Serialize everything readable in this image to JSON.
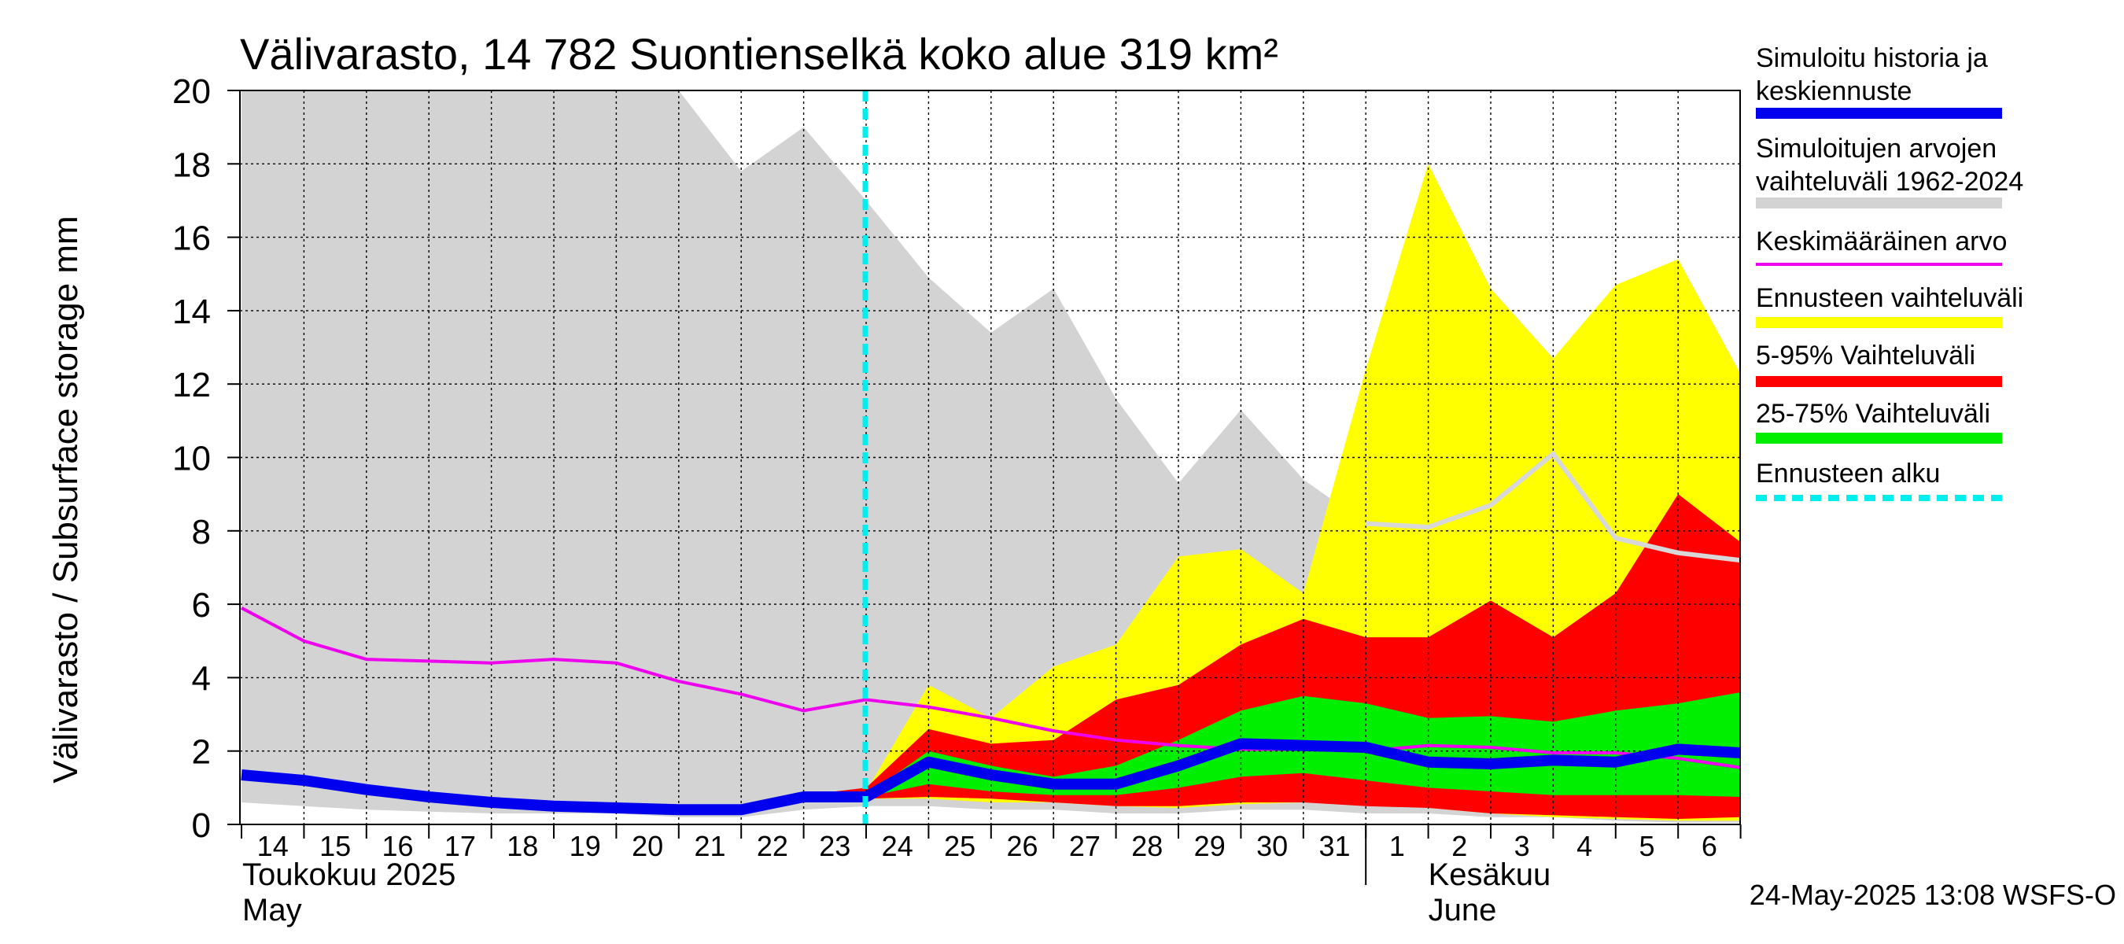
{
  "chart_data": {
    "type": "area",
    "title": "Välivarasto, 14 782 Suontienselkä koko alue 319 km²",
    "ylabel": "Välivarasto / Subsurface storage  mm",
    "ylim": [
      0,
      20
    ],
    "yticks": [
      0,
      2,
      4,
      6,
      8,
      10,
      12,
      14,
      16,
      18,
      20
    ],
    "grid": true,
    "x_day_labels": [
      "14",
      "15",
      "16",
      "17",
      "18",
      "19",
      "20",
      "21",
      "22",
      "23",
      "24",
      "25",
      "26",
      "27",
      "28",
      "29",
      "30",
      "31",
      "1",
      "2",
      "3",
      "4",
      "5",
      "6"
    ],
    "month_labels": [
      {
        "fi": "Toukokuu  2025",
        "en": "May"
      },
      {
        "fi": "Kesäkuu",
        "en": "June"
      }
    ],
    "forecast_start_day_index": 10,
    "legend": [
      {
        "label": "Simuloitu historia ja keskiennuste",
        "color": "#0000ee",
        "style": "thick-line"
      },
      {
        "label": "Simuloitujen arvojen vaihteluväli 1962-2024",
        "color": "#d3d3d3",
        "style": "thick-line"
      },
      {
        "label": "Keskimääräinen arvo",
        "color": "#ee00ee",
        "style": "line"
      },
      {
        "label": "Ennusteen vaihteluväli",
        "color": "#ffff00",
        "style": "thick-line"
      },
      {
        "label": "5-95% Vaihteluväli",
        "color": "#ff0000",
        "style": "thick-line"
      },
      {
        "label": "25-75% Vaihteluväli",
        "color": "#00ee00",
        "style": "thick-line"
      },
      {
        "label": "Ennusteen alku",
        "color": "#00eeee",
        "style": "dashed"
      }
    ],
    "series": {
      "history_range": {
        "name": "Simuloitujen arvojen vaihteluväli 1962-2024",
        "x": [
          0,
          1,
          2,
          3,
          4,
          5,
          6,
          7,
          8,
          9,
          10,
          11,
          12,
          13,
          14,
          15,
          16,
          17,
          18,
          19,
          20,
          21,
          22,
          23,
          24.15
        ],
        "upper": [
          20,
          20,
          20,
          20,
          20,
          20,
          20,
          20,
          17.8,
          19,
          17,
          14.9,
          13.4,
          14.6,
          11.6,
          9.3,
          11.3,
          9.4,
          8.2,
          8.1,
          8.7,
          10.1,
          7.8,
          7.4,
          7.2
        ],
        "lower": [
          0.6,
          0.5,
          0.4,
          0.35,
          0.3,
          0.3,
          0.3,
          0.2,
          0.2,
          0.4,
          0.5,
          0.5,
          0.4,
          0.4,
          0.3,
          0.3,
          0.4,
          0.4,
          0.3,
          0.3,
          0.2,
          0.2,
          0.1,
          0.05,
          0.05
        ]
      },
      "history_median_line": {
        "name": "history range median (light line)",
        "x": [
          18,
          19,
          20,
          21,
          22,
          23,
          24.15
        ],
        "values": [
          8.2,
          8.1,
          8.7,
          10.1,
          7.8,
          7.4,
          7.2
        ]
      },
      "forecast_range": {
        "name": "Ennusteen vaihteluväli",
        "x": [
          9,
          10,
          11,
          12,
          13,
          14,
          15,
          16,
          17,
          18,
          19,
          20,
          21,
          22,
          23,
          24.15
        ],
        "upper": [
          0.8,
          0.9,
          3.8,
          2.9,
          4.3,
          4.9,
          7.3,
          7.5,
          6.3,
          12.4,
          18,
          14.6,
          12.7,
          14.7,
          15.4,
          12.3
        ],
        "lower": [
          0.7,
          0.7,
          0.7,
          0.6,
          0.6,
          0.5,
          0.45,
          0.55,
          0.6,
          0.55,
          0.45,
          0.3,
          0.2,
          0.15,
          0.1,
          0.1
        ]
      },
      "p5_95": {
        "name": "5-95% Vaihteluväli",
        "x": [
          9,
          10,
          11,
          12,
          13,
          14,
          15,
          16,
          17,
          18,
          19,
          20,
          21,
          22,
          23,
          24.15
        ],
        "upper": [
          0.8,
          1.0,
          2.6,
          2.2,
          2.3,
          3.4,
          3.8,
          4.9,
          5.6,
          5.1,
          5.1,
          6.1,
          5.1,
          6.3,
          9.0,
          7.7
        ],
        "lower": [
          0.7,
          0.7,
          0.75,
          0.7,
          0.6,
          0.5,
          0.5,
          0.6,
          0.6,
          0.5,
          0.45,
          0.3,
          0.25,
          0.2,
          0.15,
          0.2
        ]
      },
      "p25_75": {
        "name": "25-75% Vaihteluväli",
        "x": [
          9,
          10,
          11,
          12,
          13,
          14,
          15,
          16,
          17,
          18,
          19,
          20,
          21,
          22,
          23,
          24.15
        ],
        "upper": [
          0.8,
          0.8,
          2.0,
          1.6,
          1.3,
          1.6,
          2.3,
          3.1,
          3.5,
          3.3,
          2.9,
          2.95,
          2.8,
          3.1,
          3.3,
          3.6
        ],
        "lower": [
          0.75,
          0.75,
          1.1,
          0.9,
          0.8,
          0.8,
          1.0,
          1.3,
          1.4,
          1.2,
          1.0,
          0.9,
          0.8,
          0.8,
          0.8,
          0.75
        ]
      },
      "mean": {
        "name": "Keskimääräinen arvo",
        "x": [
          0,
          1,
          2,
          3,
          4,
          5,
          6,
          7,
          8,
          9,
          10,
          11,
          12,
          13,
          14,
          15,
          16,
          17,
          18,
          19,
          20,
          21,
          22,
          23,
          24.15
        ],
        "values": [
          5.9,
          5.0,
          4.5,
          4.45,
          4.4,
          4.5,
          4.4,
          3.9,
          3.55,
          3.1,
          3.4,
          3.2,
          2.9,
          2.55,
          2.3,
          2.15,
          2.05,
          2.05,
          2.0,
          2.15,
          2.1,
          1.95,
          1.95,
          1.8,
          1.55
        ]
      },
      "simulated_median": {
        "name": "Simuloitu historia ja keskiennuste",
        "x": [
          0,
          1,
          2,
          3,
          4,
          5,
          6,
          7,
          8,
          9,
          10,
          11,
          12,
          13,
          14,
          15,
          16,
          17,
          18,
          19,
          20,
          21,
          22,
          23,
          24.15
        ],
        "values": [
          1.35,
          1.2,
          0.95,
          0.75,
          0.6,
          0.5,
          0.45,
          0.4,
          0.4,
          0.75,
          0.75,
          1.7,
          1.35,
          1.1,
          1.1,
          1.6,
          2.2,
          2.15,
          2.1,
          1.7,
          1.65,
          1.75,
          1.7,
          2.05,
          1.95
        ]
      }
    },
    "timestamp": "24-May-2025 13:08 WSFS-O"
  }
}
